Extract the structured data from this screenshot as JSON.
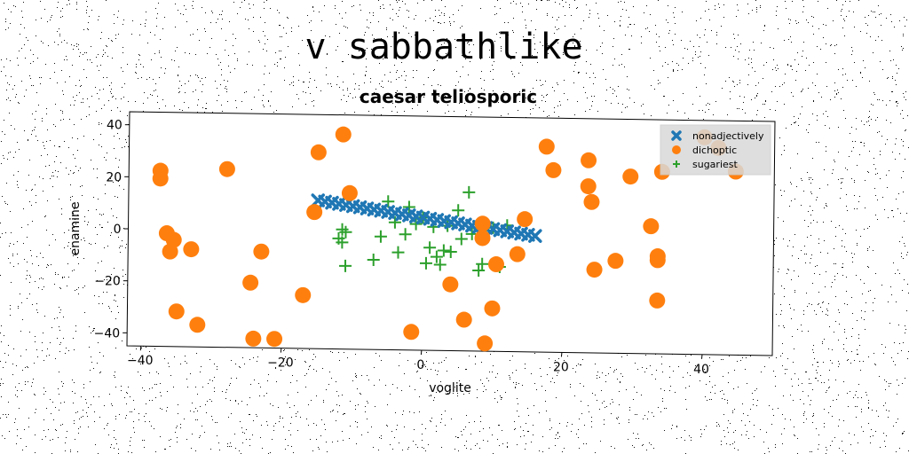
{
  "page_title": "v sabbathlike",
  "chart_data": {
    "type": "scatter",
    "title": "caesar teliosporic",
    "xlabel": "voglite",
    "ylabel": "enamine",
    "xlim": [
      -42,
      50
    ],
    "ylim": [
      -45,
      45
    ],
    "x_ticks": [
      -40,
      -20,
      0,
      20,
      40
    ],
    "y_ticks": [
      -40,
      -20,
      0,
      20,
      40
    ],
    "grid": false,
    "legend_position": "top-right",
    "series": [
      {
        "name": "nonadjectively",
        "marker": "x",
        "color": "#1f77b4",
        "x": [
          -15,
          -14,
          -13,
          -12,
          -11,
          -10,
          -9,
          -8,
          -7,
          -6,
          -5,
          -4,
          -3,
          -2,
          -1,
          0,
          1,
          2,
          3,
          4,
          5,
          6,
          7,
          8,
          9,
          10,
          11,
          12,
          13,
          14,
          15,
          16
        ],
        "y": [
          12,
          11.6,
          11.2,
          10.8,
          10.4,
          10,
          9.6,
          9.2,
          8.8,
          8.4,
          8,
          7.6,
          7.2,
          6.8,
          6.4,
          6,
          5.6,
          5.2,
          4.8,
          4.4,
          4,
          3.6,
          3.2,
          2.8,
          2.4,
          2,
          1.6,
          1.2,
          0.8,
          0.4,
          0,
          -0.4
        ]
      },
      {
        "name": "dichoptic",
        "marker": "o",
        "color": "#ff7f0e",
        "x": [
          -37.5,
          -37.5,
          -36.5,
          -35.5,
          -36,
          -35,
          -33,
          -32,
          -28,
          -24.5,
          -24,
          -23,
          -21,
          -17,
          -15.5,
          -15,
          -11.5,
          -10.5,
          -1.5,
          4,
          6,
          8.5,
          8.5,
          9,
          10,
          10.5,
          13.5,
          14.5,
          17.5,
          18.5,
          23.5,
          23.5,
          24,
          24.5,
          27.5,
          29.5,
          32.5,
          33.5,
          33.5,
          33.5,
          34,
          40,
          42,
          44.5
        ],
        "y": [
          22.5,
          19.5,
          -1.5,
          -4,
          -8.5,
          -31.5,
          -7.5,
          -36.5,
          23.5,
          -20,
          -41.5,
          -8,
          -41.5,
          -24.5,
          7.5,
          30.5,
          37.5,
          15,
          -38,
          -19.5,
          -33,
          4,
          -1.5,
          -42,
          -28.5,
          -11.5,
          -7.5,
          6,
          34,
          25,
          29,
          19,
          13,
          -13,
          -9.5,
          23,
          4,
          -7.5,
          -9,
          -24.5,
          25,
          38.5,
          34.5,
          25.5
        ]
      },
      {
        "name": "sugariest",
        "marker": "+",
        "color": "#2ca02c",
        "x": [
          -12,
          -11.5,
          -11,
          -11.5,
          -11,
          -7,
          -6,
          -5,
          -4,
          -3.5,
          -2.5,
          -2,
          -1,
          0,
          0.5,
          1,
          1.5,
          2,
          2.5,
          3,
          3.5,
          4,
          5,
          5.5,
          6.5,
          7,
          8,
          8.5,
          9,
          10,
          11,
          12
        ],
        "y": [
          -2.5,
          1,
          0,
          -4,
          -13,
          -10.5,
          -1.5,
          12,
          4,
          -7.5,
          -0.5,
          10,
          3.5,
          6,
          -11.5,
          -5.5,
          2.5,
          -9,
          -12,
          -6.5,
          3,
          -7,
          9,
          -2,
          16,
          0,
          -14,
          -11.5,
          0.5,
          2.5,
          -12.5,
          3.5
        ]
      }
    ]
  },
  "colors": {
    "axes_frame": "#000000",
    "legend_background": "#d9d9d9",
    "noise": "#111111"
  }
}
